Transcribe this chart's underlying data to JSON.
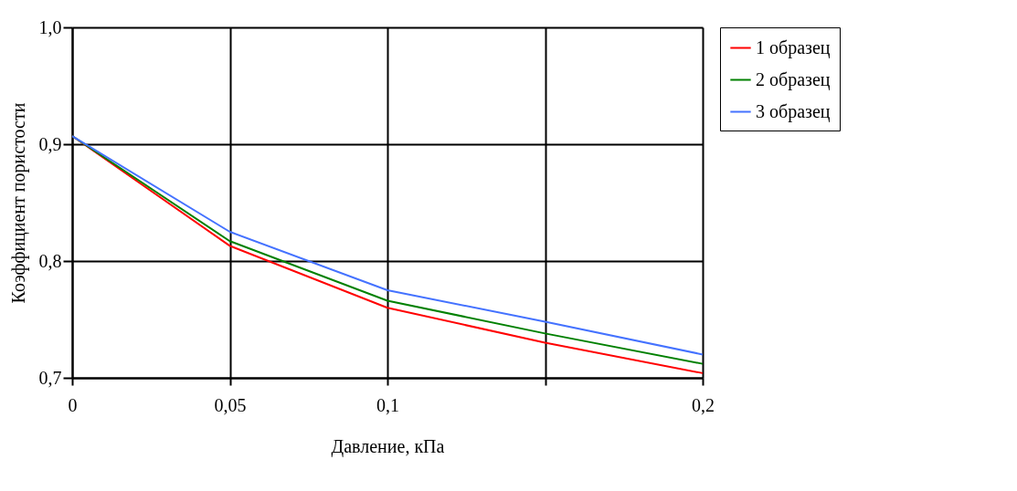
{
  "chart_data": {
    "type": "line",
    "xlabel": "Давление, кПа",
    "ylabel": "Коэффициент пористости",
    "categories": [
      "0",
      "0,05",
      "0,1",
      null,
      "0,2"
    ],
    "series": [
      {
        "name": "1 образец",
        "color": "#ff0000",
        "values": [
          0.907,
          0.813,
          0.76,
          0.73,
          0.704
        ]
      },
      {
        "name": "2 образец",
        "color": "#008000",
        "values": [
          0.907,
          0.817,
          0.766,
          0.738,
          0.712
        ]
      },
      {
        "name": "3 образец",
        "color": "#4472ff",
        "values": [
          0.907,
          0.825,
          0.775,
          0.748,
          0.72
        ]
      }
    ],
    "ylim": [
      0.7,
      1.0
    ],
    "yticks": [
      {
        "value": 0.7,
        "label": "0,7"
      },
      {
        "value": 0.8,
        "label": "0,8"
      },
      {
        "value": 0.9,
        "label": "0,9"
      },
      {
        "value": 1.0,
        "label": "1,0"
      }
    ],
    "grid": true,
    "legend": "right",
    "marker": "none",
    "line_style": "solid"
  }
}
